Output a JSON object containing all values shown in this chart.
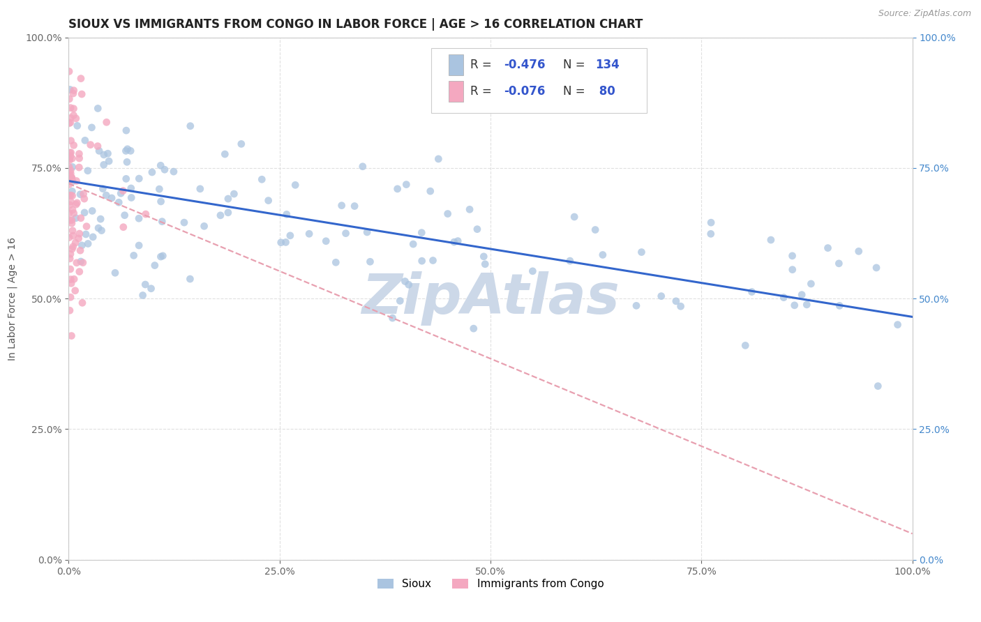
{
  "title": "SIOUX VS IMMIGRANTS FROM CONGO IN LABOR FORCE | AGE > 16 CORRELATION CHART",
  "source": "Source: ZipAtlas.com",
  "ylabel": "In Labor Force | Age > 16",
  "xlim": [
    0.0,
    1.0
  ],
  "ylim": [
    0.0,
    1.0
  ],
  "sioux_color": "#aac4e0",
  "congo_color": "#f4a8c0",
  "sioux_line_color": "#3366cc",
  "congo_line_color": "#e8a0b0",
  "right_tick_color": "#4488cc",
  "background_color": "#ffffff",
  "grid_color": "#dddddd",
  "watermark_text": "ZipAtlas",
  "watermark_color": "#ccd8e8",
  "title_fontsize": 12,
  "label_fontsize": 10,
  "tick_fontsize": 10,
  "legend_fontsize": 12,
  "sioux_R": -0.476,
  "sioux_N": 134,
  "congo_R": -0.076,
  "congo_N": 80,
  "sioux_trend_x0": 0.0,
  "sioux_trend_y0": 0.725,
  "sioux_trend_x1": 1.0,
  "sioux_trend_y1": 0.465,
  "congo_trend_x0": 0.0,
  "congo_trend_y0": 0.72,
  "congo_trend_x1": 1.0,
  "congo_trend_y1": 0.05
}
